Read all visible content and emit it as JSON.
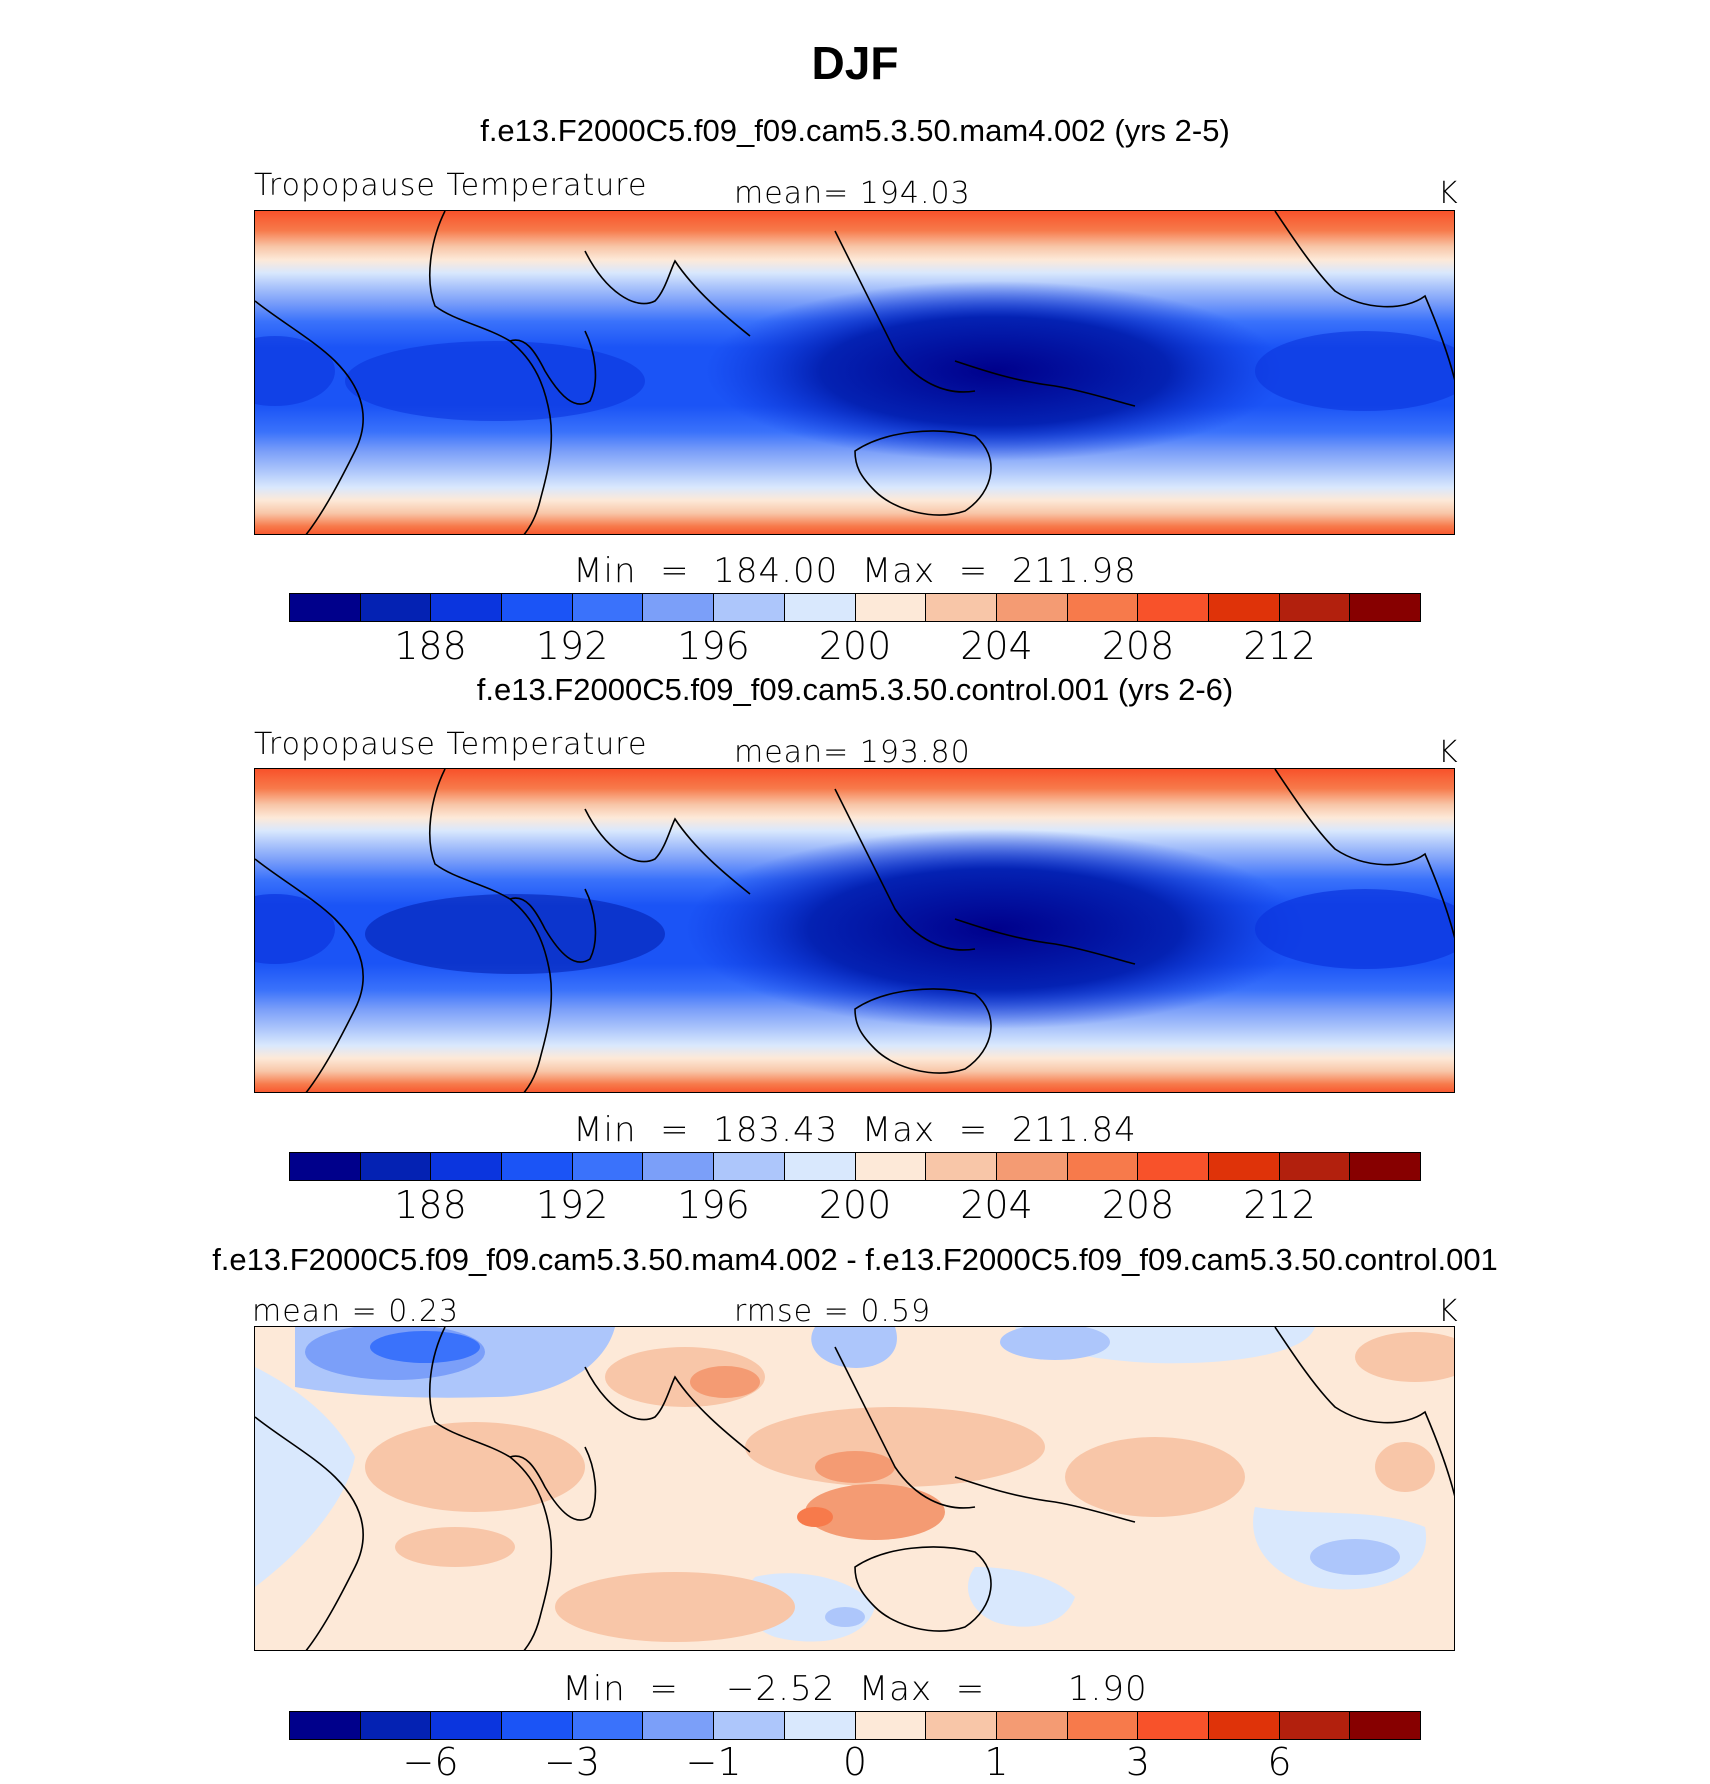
{
  "figure": {
    "title": "DJF"
  },
  "colors": [
    "#00008b",
    "#0422b3",
    "#0b35de",
    "#1b54f6",
    "#3a72fb",
    "#7b9ff9",
    "#adc6fb",
    "#d9e8fd",
    "#fde9d8",
    "#f8c6a8",
    "#f49b73",
    "#f77a4b",
    "#f8522a",
    "#df3309",
    "#b2200d",
    "#870000"
  ],
  "chart_data": [
    {
      "type": "heatmap",
      "case_title": "f.e13.F2000C5.f09_f09.cam5.3.50.mam4.002 (yrs 2-5)",
      "variable_label": "Tropopause Temperature",
      "mean_label": "mean=  194.03",
      "units": "K",
      "minmax_label": "Min  =  184.00  Max  =  211.98",
      "colorbar_ticks": [
        "188",
        "192",
        "196",
        "200",
        "204",
        "208",
        "212"
      ],
      "data_range": [
        184.0,
        211.98
      ],
      "x_range_deg": [
        -60,
        300
      ],
      "y_range_deg": [
        -60,
        60
      ]
    },
    {
      "type": "heatmap",
      "case_title": "f.e13.F2000C5.f09_f09.cam5.3.50.control.001 (yrs 2-6)",
      "variable_label": "Tropopause Temperature",
      "mean_label": "mean=  193.80",
      "units": "K",
      "minmax_label": "Min  =  183.43  Max  =  211.84",
      "colorbar_ticks": [
        "188",
        "192",
        "196",
        "200",
        "204",
        "208",
        "212"
      ],
      "data_range": [
        183.43,
        211.84
      ],
      "x_range_deg": [
        -60,
        300
      ],
      "y_range_deg": [
        -60,
        60
      ]
    },
    {
      "type": "heatmap",
      "case_title": "f.e13.F2000C5.f09_f09.cam5.3.50.mam4.002 - f.e13.F2000C5.f09_f09.cam5.3.50.control.001",
      "mean_label": "mean =     0.23",
      "rmse_label": "rmse =     0.59",
      "units": "K",
      "minmax_label": "Min  =    −2.52  Max  =       1.90",
      "colorbar_ticks": [
        "−6",
        "−3",
        "−1",
        "0",
        "1",
        "3",
        "6"
      ],
      "data_range": [
        -2.52,
        1.9
      ],
      "x_range_deg": [
        -60,
        300
      ],
      "y_range_deg": [
        -60,
        60
      ]
    }
  ]
}
